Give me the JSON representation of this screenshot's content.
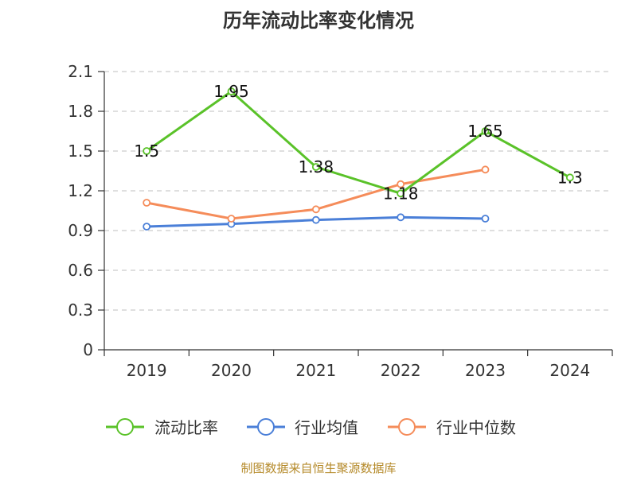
{
  "chart_data": {
    "type": "line",
    "title": "历年流动比率变化情况",
    "categories": [
      "2019",
      "2020",
      "2021",
      "2022",
      "2023",
      "2024"
    ],
    "ylim": [
      0,
      2.1
    ],
    "yticks": [
      "0",
      "0.3",
      "0.6",
      "0.9",
      "1.2",
      "1.5",
      "1.8",
      "2.1"
    ],
    "grid": true,
    "legend_position": "bottom",
    "series": [
      {
        "name": "流动比率",
        "color": "#5ac229",
        "values": [
          1.5,
          1.95,
          1.38,
          1.18,
          1.65,
          1.3
        ],
        "labels": [
          "1.5",
          "1.95",
          "1.38",
          "1.18",
          "1.65",
          "1.3"
        ]
      },
      {
        "name": "行业均值",
        "color": "#4a7fd8",
        "values": [
          0.93,
          0.95,
          0.98,
          1.0,
          0.99,
          null
        ]
      },
      {
        "name": "行业中位数",
        "color": "#f58c5a",
        "values": [
          1.11,
          0.99,
          1.06,
          1.25,
          1.36,
          null
        ]
      }
    ]
  },
  "source": "制图数据来自恒生聚源数据库"
}
